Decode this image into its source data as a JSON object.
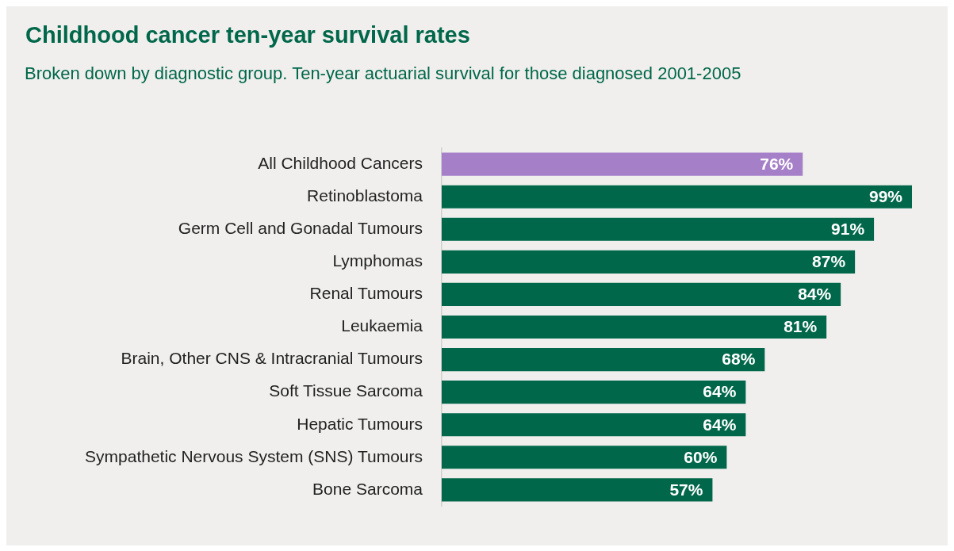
{
  "chart_data": {
    "type": "bar",
    "orientation": "horizontal",
    "title": "Childhood cancer ten-year survival rates",
    "subtitle": "Broken down by diagnostic group. Ten-year actuarial survival for those diagnosed 2001-2005",
    "categories": [
      "All Childhood Cancers",
      "Retinoblastoma",
      "Germ Cell and Gonadal Tumours",
      "Lymphomas",
      "Renal Tumours",
      "Leukaemia",
      "Brain, Other CNS & Intracranial Tumours",
      "Soft Tissue Sarcoma",
      "Hepatic Tumours",
      "Sympathetic Nervous System (SNS) Tumours",
      "Bone Sarcoma"
    ],
    "values": [
      76,
      99,
      91,
      87,
      84,
      81,
      68,
      64,
      64,
      60,
      57
    ],
    "value_labels": [
      "76%",
      "99%",
      "91%",
      "87%",
      "84%",
      "81%",
      "68%",
      "64%",
      "64%",
      "60%",
      "57%"
    ],
    "colors": [
      "#a580c8",
      "#00674a",
      "#00674a",
      "#00674a",
      "#00674a",
      "#00674a",
      "#00674a",
      "#00674a",
      "#00674a",
      "#00674a",
      "#00674a"
    ],
    "tick_labels": "y",
    "grid": false,
    "legend": false
  }
}
